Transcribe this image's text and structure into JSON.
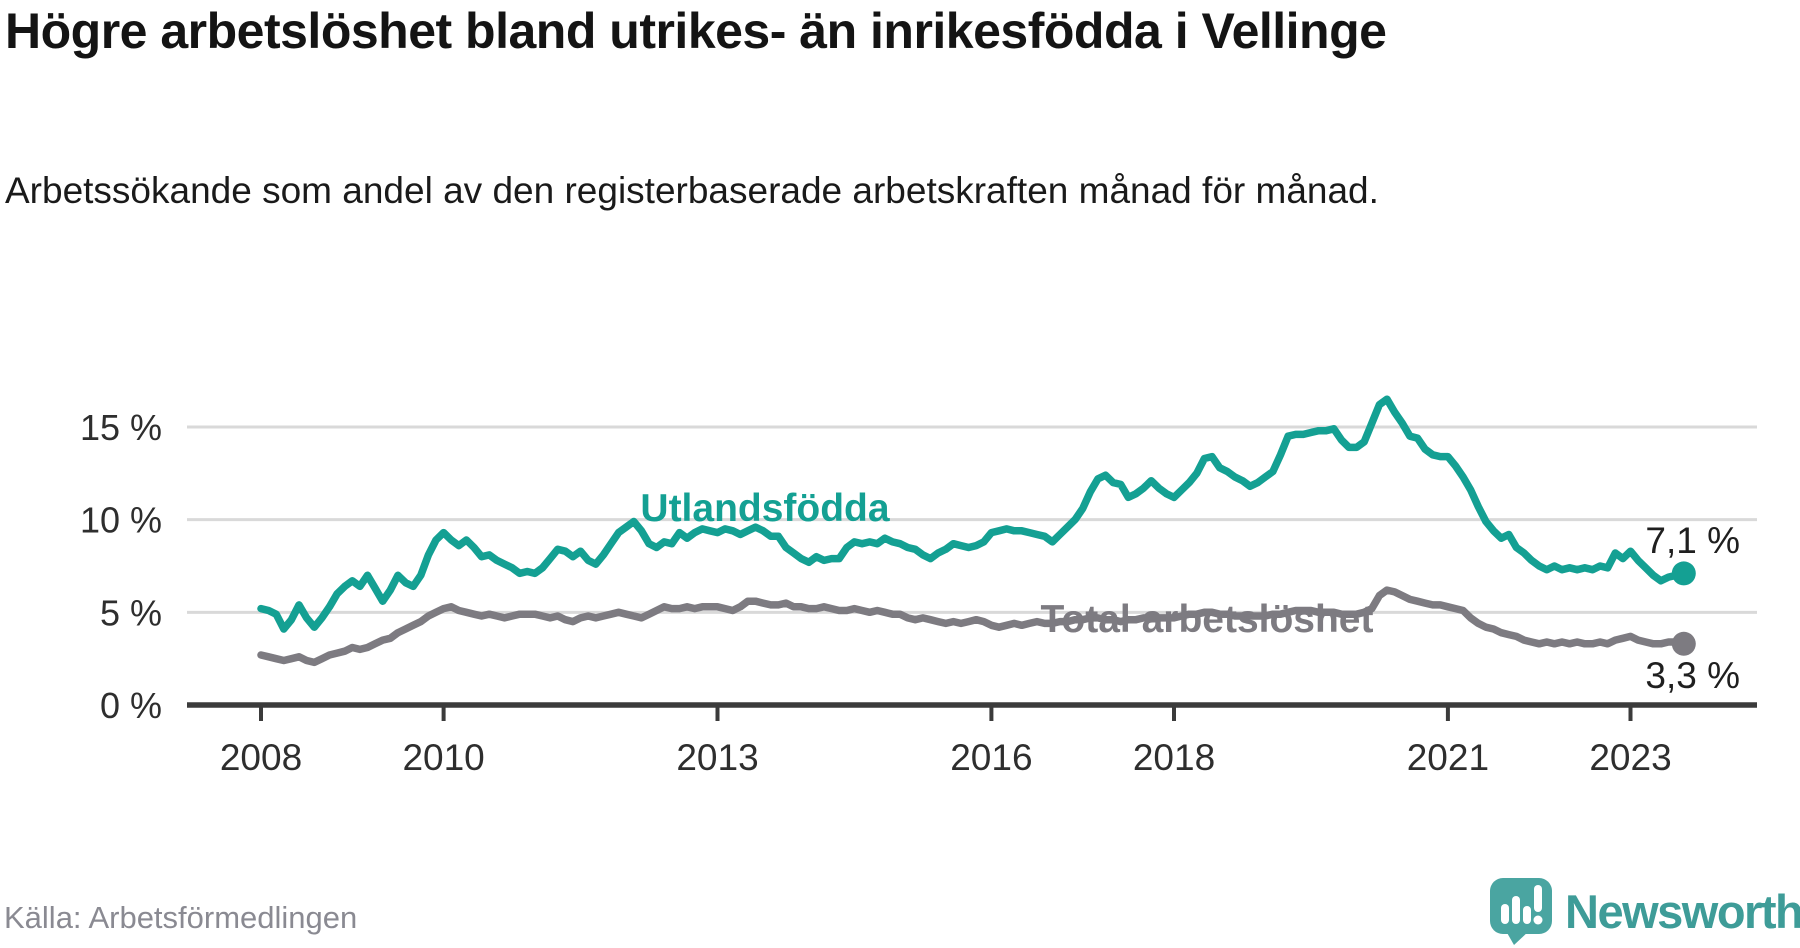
{
  "header": {
    "title": "Högre arbetslöshet bland utrikes- än inrikesfödda i Vellinge",
    "subtitle": "Arbetssökande som andel av den registerbaserade arbetskraften månad för månad."
  },
  "footer": {
    "source": "Källa: Arbetsförmedlingen",
    "logo_text": "Newsworthy"
  },
  "colors": {
    "foreign_born": "#14a093",
    "total": "#7d7b81",
    "axis": "#3b3b3b",
    "grid": "#d9d9d9",
    "logo_icon": "#4aa5a1",
    "logo_text": "#3e9c98"
  },
  "chart_data": {
    "type": "line",
    "x_unit": "month",
    "start": "2008-01",
    "end": "2023-08",
    "grid": "horizontal",
    "ylim": [
      0,
      17
    ],
    "y_ticks": [
      {
        "value": 0,
        "label": "0 %"
      },
      {
        "value": 5,
        "label": "5 %"
      },
      {
        "value": 10,
        "label": "10 %"
      },
      {
        "value": 15,
        "label": "15 %"
      }
    ],
    "x_ticks": [
      {
        "year": 2008,
        "label": "2008"
      },
      {
        "year": 2010,
        "label": "2010"
      },
      {
        "year": 2013,
        "label": "2013"
      },
      {
        "year": 2016,
        "label": "2016"
      },
      {
        "year": 2018,
        "label": "2018"
      },
      {
        "year": 2021,
        "label": "2021"
      },
      {
        "year": 2023,
        "label": "2023"
      }
    ],
    "series": [
      {
        "name": "Utlandsfödda",
        "color": "#14a093",
        "end_value_label": "7,1 %",
        "values": [
          5.2,
          5.1,
          4.9,
          4.1,
          4.6,
          5.4,
          4.7,
          4.2,
          4.7,
          5.3,
          6.0,
          6.4,
          6.7,
          6.4,
          7.0,
          6.3,
          5.6,
          6.2,
          7.0,
          6.6,
          6.4,
          7.0,
          8.1,
          8.9,
          9.3,
          8.9,
          8.6,
          8.9,
          8.5,
          8.0,
          8.1,
          7.8,
          7.6,
          7.4,
          7.1,
          7.2,
          7.1,
          7.4,
          7.9,
          8.4,
          8.3,
          8.0,
          8.3,
          7.8,
          7.6,
          8.1,
          8.7,
          9.3,
          9.6,
          9.9,
          9.4,
          8.7,
          8.5,
          8.8,
          8.7,
          9.3,
          9.0,
          9.3,
          9.5,
          9.4,
          9.3,
          9.5,
          9.4,
          9.2,
          9.4,
          9.6,
          9.4,
          9.1,
          9.1,
          8.5,
          8.2,
          7.9,
          7.7,
          8.0,
          7.8,
          7.9,
          7.9,
          8.5,
          8.8,
          8.7,
          8.8,
          8.7,
          9.0,
          8.8,
          8.7,
          8.5,
          8.4,
          8.1,
          7.9,
          8.2,
          8.4,
          8.7,
          8.6,
          8.5,
          8.6,
          8.8,
          9.3,
          9.4,
          9.5,
          9.4,
          9.4,
          9.3,
          9.2,
          9.1,
          8.8,
          9.2,
          9.6,
          10.0,
          10.6,
          11.5,
          12.2,
          12.4,
          12.0,
          11.9,
          11.2,
          11.4,
          11.7,
          12.1,
          11.7,
          11.4,
          11.2,
          11.6,
          12.0,
          12.5,
          13.3,
          13.4,
          12.8,
          12.6,
          12.3,
          12.1,
          11.8,
          12.0,
          12.3,
          12.6,
          13.5,
          14.5,
          14.6,
          14.6,
          14.7,
          14.8,
          14.8,
          14.9,
          14.3,
          13.9,
          13.9,
          14.2,
          15.2,
          16.2,
          16.5,
          15.8,
          15.2,
          14.5,
          14.4,
          13.8,
          13.5,
          13.4,
          13.4,
          12.9,
          12.3,
          11.6,
          10.7,
          9.9,
          9.4,
          9.0,
          9.2,
          8.5,
          8.2,
          7.8,
          7.5,
          7.3,
          7.5,
          7.3,
          7.4,
          7.3,
          7.4,
          7.3,
          7.5,
          7.4,
          8.2,
          7.9,
          8.3,
          7.8,
          7.4,
          7.0,
          6.7,
          6.9,
          7.0,
          7.1
        ]
      },
      {
        "name": "Total arbetslöshet",
        "color": "#7d7b81",
        "end_value_label": "3,3 %",
        "values": [
          2.7,
          2.6,
          2.5,
          2.4,
          2.5,
          2.6,
          2.4,
          2.3,
          2.5,
          2.7,
          2.8,
          2.9,
          3.1,
          3.0,
          3.1,
          3.3,
          3.5,
          3.6,
          3.9,
          4.1,
          4.3,
          4.5,
          4.8,
          5.0,
          5.2,
          5.3,
          5.1,
          5.0,
          4.9,
          4.8,
          4.9,
          4.8,
          4.7,
          4.8,
          4.9,
          4.9,
          4.9,
          4.8,
          4.7,
          4.8,
          4.6,
          4.5,
          4.7,
          4.8,
          4.7,
          4.8,
          4.9,
          5.0,
          4.9,
          4.8,
          4.7,
          4.9,
          5.1,
          5.3,
          5.2,
          5.2,
          5.3,
          5.2,
          5.3,
          5.3,
          5.3,
          5.2,
          5.1,
          5.3,
          5.6,
          5.6,
          5.5,
          5.4,
          5.4,
          5.5,
          5.3,
          5.3,
          5.2,
          5.2,
          5.3,
          5.2,
          5.1,
          5.1,
          5.2,
          5.1,
          5.0,
          5.1,
          5.0,
          4.9,
          4.9,
          4.7,
          4.6,
          4.7,
          4.6,
          4.5,
          4.4,
          4.5,
          4.4,
          4.5,
          4.6,
          4.5,
          4.3,
          4.2,
          4.3,
          4.4,
          4.3,
          4.4,
          4.5,
          4.4,
          4.4,
          4.5,
          4.5,
          4.6,
          4.6,
          4.7,
          4.7,
          4.6,
          4.6,
          4.5,
          4.6,
          4.6,
          4.7,
          4.7,
          4.7,
          4.7,
          4.7,
          4.8,
          4.9,
          4.9,
          5.0,
          5.0,
          4.9,
          4.9,
          4.8,
          4.8,
          4.8,
          4.8,
          4.8,
          4.9,
          4.9,
          5.0,
          5.1,
          5.1,
          5.1,
          5.0,
          5.0,
          5.0,
          4.9,
          4.9,
          4.9,
          5.0,
          5.2,
          5.9,
          6.2,
          6.1,
          5.9,
          5.7,
          5.6,
          5.5,
          5.4,
          5.4,
          5.3,
          5.2,
          5.1,
          4.7,
          4.4,
          4.2,
          4.1,
          3.9,
          3.8,
          3.7,
          3.5,
          3.4,
          3.3,
          3.4,
          3.3,
          3.4,
          3.3,
          3.4,
          3.3,
          3.3,
          3.4,
          3.3,
          3.5,
          3.6,
          3.7,
          3.5,
          3.4,
          3.3,
          3.3,
          3.4,
          3.4,
          3.3
        ]
      }
    ]
  }
}
